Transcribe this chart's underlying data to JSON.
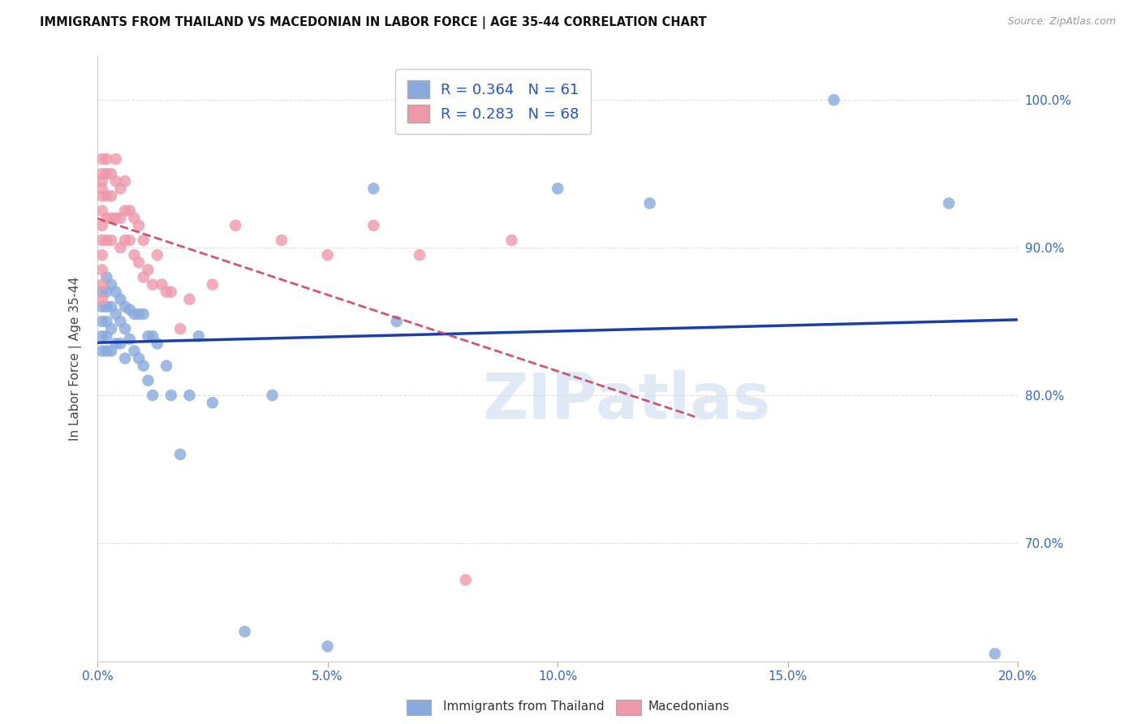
{
  "title": "IMMIGRANTS FROM THAILAND VS MACEDONIAN IN LABOR FORCE | AGE 35-44 CORRELATION CHART",
  "source": "Source: ZipAtlas.com",
  "ylabel": "In Labor Force | Age 35-44",
  "R_blue": 0.364,
  "N_blue": 61,
  "R_pink": 0.283,
  "N_pink": 68,
  "blue_scatter_color": "#88aadd",
  "pink_scatter_color": "#ee99aa",
  "blue_line_color": "#1a3faa",
  "pink_line_color": "#cc4466",
  "xmin": 0.0,
  "xmax": 0.2,
  "ymin": 0.62,
  "ymax": 1.03,
  "yticks": [
    0.7,
    0.8,
    0.9,
    1.0
  ],
  "ytick_labels": [
    "70.0%",
    "80.0%",
    "90.0%",
    "100.0%"
  ],
  "xticks": [
    0.0,
    0.05,
    0.1,
    0.15,
    0.2
  ],
  "xtick_labels": [
    "0.0%",
    "5.0%",
    "10.0%",
    "15.0%",
    "20.0%"
  ],
  "blue_scatter_x": [
    0.001,
    0.001,
    0.001,
    0.001,
    0.001,
    0.002,
    0.002,
    0.002,
    0.002,
    0.002,
    0.002,
    0.003,
    0.003,
    0.003,
    0.003,
    0.004,
    0.004,
    0.004,
    0.005,
    0.005,
    0.005,
    0.006,
    0.006,
    0.006,
    0.007,
    0.007,
    0.008,
    0.008,
    0.009,
    0.009,
    0.01,
    0.01,
    0.011,
    0.011,
    0.012,
    0.012,
    0.013,
    0.015,
    0.016,
    0.018,
    0.02,
    0.022,
    0.025,
    0.032,
    0.038,
    0.05,
    0.06,
    0.065,
    0.1,
    0.12,
    0.16,
    0.185,
    0.195
  ],
  "blue_scatter_y": [
    0.87,
    0.86,
    0.85,
    0.84,
    0.83,
    0.88,
    0.87,
    0.86,
    0.85,
    0.84,
    0.83,
    0.875,
    0.86,
    0.845,
    0.83,
    0.87,
    0.855,
    0.835,
    0.865,
    0.85,
    0.835,
    0.86,
    0.845,
    0.825,
    0.858,
    0.838,
    0.855,
    0.83,
    0.855,
    0.825,
    0.855,
    0.82,
    0.84,
    0.81,
    0.84,
    0.8,
    0.835,
    0.82,
    0.8,
    0.76,
    0.8,
    0.84,
    0.795,
    0.64,
    0.8,
    0.63,
    0.94,
    0.85,
    0.94,
    0.93,
    1.0,
    0.93,
    0.625
  ],
  "pink_scatter_x": [
    0.001,
    0.001,
    0.001,
    0.001,
    0.001,
    0.001,
    0.001,
    0.001,
    0.001,
    0.001,
    0.001,
    0.001,
    0.002,
    0.002,
    0.002,
    0.002,
    0.002,
    0.003,
    0.003,
    0.003,
    0.003,
    0.004,
    0.004,
    0.004,
    0.005,
    0.005,
    0.005,
    0.006,
    0.006,
    0.006,
    0.007,
    0.007,
    0.008,
    0.008,
    0.009,
    0.009,
    0.01,
    0.01,
    0.011,
    0.012,
    0.013,
    0.014,
    0.015,
    0.016,
    0.018,
    0.02,
    0.025,
    0.03,
    0.04,
    0.05,
    0.06,
    0.07,
    0.08,
    0.09
  ],
  "pink_scatter_y": [
    0.96,
    0.95,
    0.945,
    0.94,
    0.935,
    0.925,
    0.915,
    0.905,
    0.895,
    0.885,
    0.875,
    0.865,
    0.96,
    0.95,
    0.935,
    0.92,
    0.905,
    0.95,
    0.935,
    0.92,
    0.905,
    0.96,
    0.945,
    0.92,
    0.94,
    0.92,
    0.9,
    0.945,
    0.925,
    0.905,
    0.925,
    0.905,
    0.92,
    0.895,
    0.915,
    0.89,
    0.905,
    0.88,
    0.885,
    0.875,
    0.895,
    0.875,
    0.87,
    0.87,
    0.845,
    0.865,
    0.875,
    0.915,
    0.905,
    0.895,
    0.915,
    0.895,
    0.675,
    0.905
  ],
  "watermark_text": "ZIPatlas",
  "watermark_color": "#c8d8f0",
  "background_color": "#ffffff",
  "grid_color": "#e0e0e0"
}
